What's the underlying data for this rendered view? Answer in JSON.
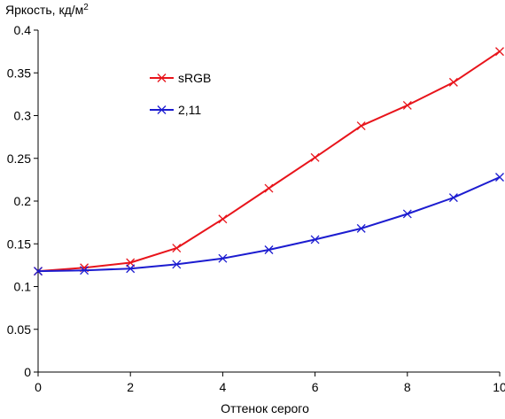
{
  "chart_data": {
    "type": "line",
    "ylabel": "Яркость, кд/м",
    "ylabel_superscript": "2",
    "xlabel": "Оттенок серого",
    "x": [
      0,
      1,
      2,
      3,
      4,
      5,
      6,
      7,
      8,
      9,
      10
    ],
    "xlim": [
      0,
      10
    ],
    "ylim": [
      0,
      0.4
    ],
    "x_ticks": [
      0,
      2,
      4,
      6,
      8,
      10
    ],
    "x_tick_labels": [
      "0",
      "2",
      "4",
      "6",
      "8",
      "10"
    ],
    "y_ticks": [
      0,
      0.05,
      0.1,
      0.15,
      0.2,
      0.25,
      0.3,
      0.35,
      0.4
    ],
    "y_tick_labels": [
      "0",
      "0.05",
      "0.1",
      "0.15",
      "0.2",
      "0.25",
      "0.3",
      "0.35",
      "0.4"
    ],
    "grid": false,
    "legend_position": "upper-left",
    "series": [
      {
        "name": "sRGB",
        "color": "#e8141b",
        "marker": "x",
        "values": [
          0.118,
          0.122,
          0.128,
          0.145,
          0.179,
          0.215,
          0.251,
          0.288,
          0.312,
          0.339,
          0.375
        ]
      },
      {
        "name": "2,11",
        "color": "#1c1cd0",
        "marker": "x",
        "values": [
          0.118,
          0.119,
          0.121,
          0.126,
          0.133,
          0.143,
          0.155,
          0.168,
          0.185,
          0.204,
          0.228
        ]
      }
    ]
  }
}
